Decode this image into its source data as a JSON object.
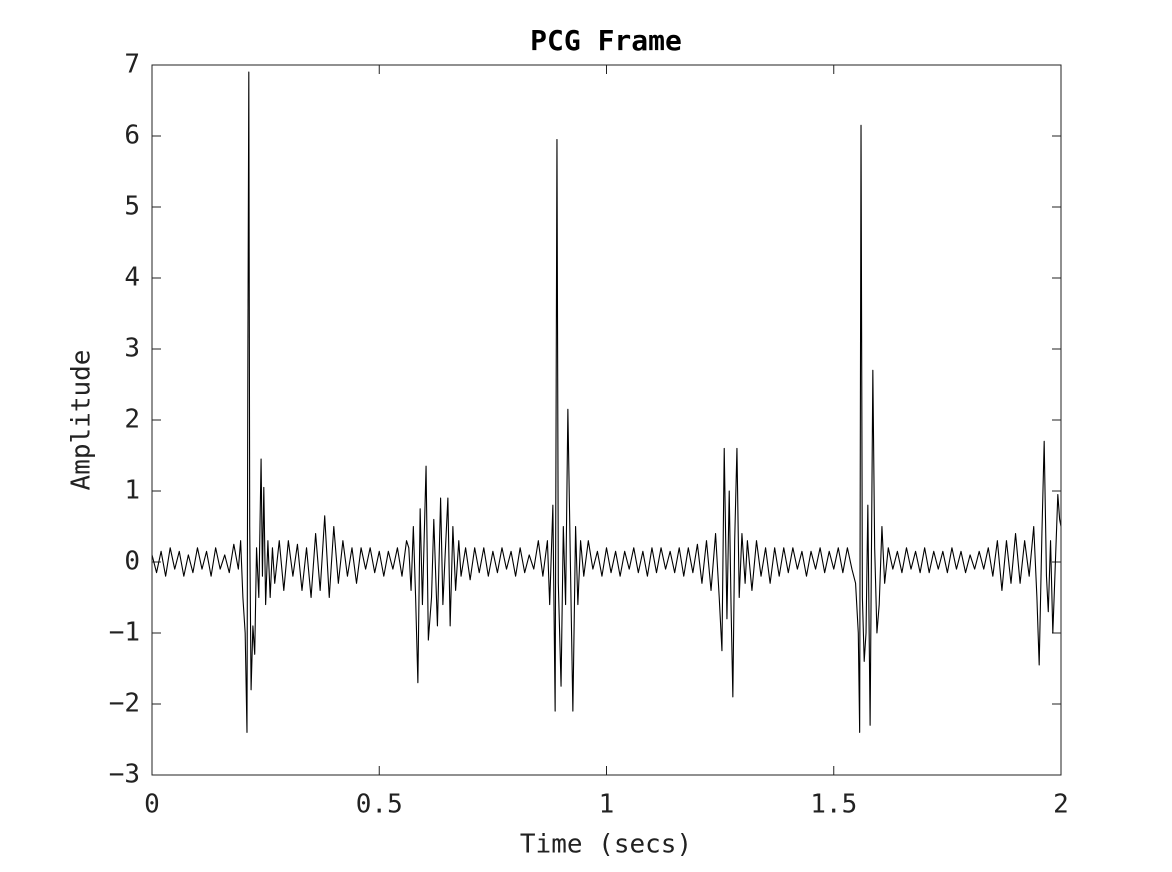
{
  "chart_data": {
    "type": "line",
    "title": "PCG Frame",
    "x_label": "Time (secs)",
    "y_label": "Amplitude",
    "color": "#000000",
    "box": true,
    "xlim": [
      0,
      2
    ],
    "xticks": [
      0,
      0.5,
      1,
      1.5,
      2
    ],
    "ylim": [
      -3,
      7
    ],
    "yticks": [
      {
        "value": -3,
        "label": "−3"
      },
      {
        "value": -2,
        "label": "−2"
      },
      {
        "value": -1,
        "label": "−1"
      },
      0,
      1,
      2,
      3,
      4,
      5,
      6,
      7
    ],
    "x": [
      0,
      0.01,
      0.02,
      0.03,
      0.04,
      0.05,
      0.06,
      0.07,
      0.08,
      0.09,
      0.1,
      0.11,
      0.12,
      0.13,
      0.14,
      0.15,
      0.16,
      0.17,
      0.18,
      0.19,
      0.195,
      0.2,
      0.205,
      0.209,
      0.211,
      0.213,
      0.215,
      0.218,
      0.222,
      0.226,
      0.23,
      0.235,
      0.24,
      0.243,
      0.246,
      0.25,
      0.255,
      0.26,
      0.265,
      0.27,
      0.28,
      0.29,
      0.3,
      0.31,
      0.32,
      0.33,
      0.34,
      0.35,
      0.36,
      0.37,
      0.38,
      0.39,
      0.4,
      0.41,
      0.42,
      0.43,
      0.44,
      0.45,
      0.46,
      0.47,
      0.48,
      0.49,
      0.5,
      0.51,
      0.52,
      0.53,
      0.54,
      0.55,
      0.56,
      0.565,
      0.57,
      0.575,
      0.58,
      0.585,
      0.59,
      0.595,
      0.603,
      0.608,
      0.615,
      0.62,
      0.628,
      0.635,
      0.64,
      0.645,
      0.651,
      0.656,
      0.662,
      0.668,
      0.675,
      0.68,
      0.69,
      0.7,
      0.71,
      0.72,
      0.73,
      0.74,
      0.75,
      0.76,
      0.77,
      0.78,
      0.79,
      0.8,
      0.81,
      0.82,
      0.83,
      0.84,
      0.85,
      0.86,
      0.87,
      0.875,
      0.882,
      0.887,
      0.891,
      0.894,
      0.9,
      0.905,
      0.91,
      0.915,
      0.92,
      0.926,
      0.932,
      0.937,
      0.943,
      0.95,
      0.96,
      0.97,
      0.98,
      0.99,
      1.0,
      1.01,
      1.02,
      1.03,
      1.04,
      1.05,
      1.06,
      1.07,
      1.08,
      1.09,
      1.1,
      1.11,
      1.12,
      1.13,
      1.14,
      1.15,
      1.16,
      1.17,
      1.18,
      1.19,
      1.2,
      1.21,
      1.22,
      1.23,
      1.24,
      1.248,
      1.254,
      1.259,
      1.265,
      1.27,
      1.274,
      1.278,
      1.282,
      1.287,
      1.292,
      1.298,
      1.305,
      1.31,
      1.32,
      1.33,
      1.34,
      1.35,
      1.36,
      1.37,
      1.38,
      1.39,
      1.4,
      1.41,
      1.42,
      1.43,
      1.44,
      1.45,
      1.46,
      1.47,
      1.48,
      1.49,
      1.5,
      1.51,
      1.52,
      1.53,
      1.54,
      1.548,
      1.554,
      1.557,
      1.56,
      1.563,
      1.567,
      1.571,
      1.575,
      1.58,
      1.586,
      1.59,
      1.595,
      1.6,
      1.606,
      1.612,
      1.62,
      1.63,
      1.64,
      1.65,
      1.66,
      1.67,
      1.68,
      1.69,
      1.7,
      1.71,
      1.72,
      1.73,
      1.74,
      1.75,
      1.76,
      1.77,
      1.78,
      1.79,
      1.8,
      1.81,
      1.82,
      1.83,
      1.84,
      1.85,
      1.86,
      1.87,
      1.88,
      1.89,
      1.9,
      1.91,
      1.92,
      1.93,
      1.94,
      1.947,
      1.952,
      1.958,
      1.963,
      1.968,
      1.972,
      1.977,
      1.982,
      1.986,
      1.993,
      1.997,
      2.0
    ],
    "values": [
      0.1,
      -0.15,
      0.15,
      -0.2,
      0.2,
      -0.1,
      0.15,
      -0.2,
      0.1,
      -0.15,
      0.2,
      -0.1,
      0.15,
      -0.2,
      0.2,
      -0.1,
      0.1,
      -0.15,
      0.25,
      -0.1,
      0.3,
      -0.5,
      -1.0,
      -2.4,
      3.0,
      6.9,
      0.5,
      -1.8,
      -0.9,
      -1.3,
      0.2,
      -0.5,
      1.45,
      -0.2,
      1.05,
      -0.6,
      0.3,
      -0.5,
      0.2,
      -0.3,
      0.3,
      -0.4,
      0.3,
      -0.2,
      0.25,
      -0.4,
      0.2,
      -0.5,
      0.4,
      -0.4,
      0.65,
      -0.5,
      0.5,
      -0.3,
      0.3,
      -0.2,
      0.2,
      -0.3,
      0.2,
      -0.1,
      0.2,
      -0.15,
      0.15,
      -0.2,
      0.15,
      -0.1,
      0.2,
      -0.2,
      0.3,
      0.2,
      -0.4,
      0.5,
      -0.5,
      -1.7,
      0.75,
      -0.6,
      1.35,
      -1.1,
      -0.5,
      0.6,
      -0.9,
      0.9,
      -0.6,
      0.1,
      0.9,
      -0.9,
      0.5,
      -0.4,
      0.3,
      -0.2,
      0.2,
      -0.25,
      0.2,
      -0.15,
      0.2,
      -0.2,
      0.15,
      -0.15,
      0.2,
      -0.1,
      0.15,
      -0.2,
      0.2,
      -0.15,
      0.1,
      -0.1,
      0.3,
      -0.2,
      0.3,
      -0.6,
      0.8,
      -2.1,
      5.95,
      -0.3,
      -1.75,
      0.5,
      -0.6,
      2.15,
      0.2,
      -2.1,
      0.5,
      -0.6,
      0.3,
      -0.2,
      0.3,
      -0.1,
      0.15,
      -0.2,
      0.2,
      -0.15,
      0.15,
      -0.2,
      0.15,
      -0.1,
      0.2,
      -0.15,
      0.15,
      -0.2,
      0.2,
      -0.15,
      0.2,
      -0.1,
      0.15,
      -0.15,
      0.2,
      -0.2,
      0.2,
      -0.15,
      0.25,
      -0.3,
      0.3,
      -0.4,
      0.4,
      -0.5,
      -1.25,
      1.6,
      -0.8,
      1.0,
      -0.6,
      -1.9,
      0.3,
      1.6,
      -0.5,
      0.4,
      -0.3,
      0.3,
      -0.4,
      0.3,
      -0.2,
      0.2,
      -0.3,
      0.2,
      -0.2,
      0.2,
      -0.15,
      0.2,
      -0.1,
      0.15,
      -0.2,
      0.15,
      -0.1,
      0.2,
      -0.15,
      0.15,
      -0.1,
      0.2,
      -0.15,
      0.2,
      -0.1,
      -0.3,
      -1.0,
      -2.4,
      6.15,
      -0.5,
      -1.4,
      -1.0,
      0.8,
      -2.3,
      2.7,
      0.2,
      -1.0,
      -0.6,
      0.5,
      -0.3,
      0.2,
      -0.1,
      0.15,
      -0.15,
      0.2,
      -0.1,
      0.15,
      -0.15,
      0.2,
      -0.15,
      0.15,
      -0.1,
      0.15,
      -0.15,
      0.2,
      -0.1,
      0.15,
      -0.15,
      0.1,
      -0.1,
      0.15,
      -0.1,
      0.2,
      -0.2,
      0.3,
      -0.4,
      0.3,
      -0.3,
      0.4,
      -0.3,
      0.3,
      -0.2,
      0.5,
      -0.5,
      -1.45,
      0.4,
      1.7,
      -0.2,
      -0.7,
      0.3,
      -1.0,
      -0.3,
      0.95,
      0.6,
      0.5
    ]
  }
}
